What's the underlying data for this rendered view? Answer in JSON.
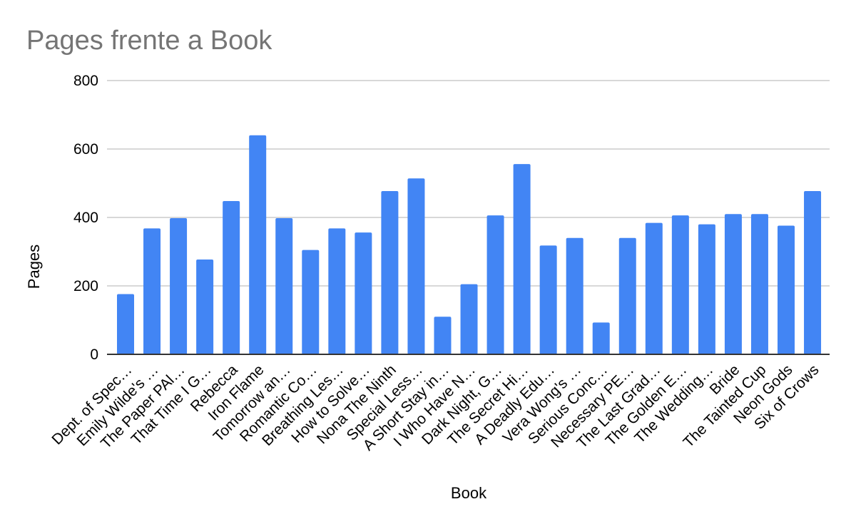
{
  "chart_data": {
    "type": "bar",
    "title": "Pages frente a Book",
    "xlabel": "Book",
    "ylabel": "Pages",
    "ylim": [
      0,
      800
    ],
    "yticks": [
      "0",
      "200",
      "400",
      "600",
      "800"
    ],
    "grid": true,
    "color": "#4285f4",
    "categories": [
      "Dept. of Spec…",
      "Emily Wilde's …",
      "The Paper PAl…",
      "That Time I G…",
      "Rebecca",
      "Iron Flame",
      "Tomorrow an…",
      "Romantic Co…",
      "Breathing Les…",
      "How to Solve…",
      "Nona The Ninth",
      "Special Less…",
      "A Short Stay in…",
      "I Who Have N…",
      "Dark Night, G…",
      "The Secret Hi…",
      "A Deadly Edu…",
      "Vera Wong's …",
      "Serious Conc…",
      "Necessary PE…",
      "The Last Grad…",
      "The Golden E…",
      "The Wedding…",
      "Bride",
      "The Tainted Cup",
      "Neon Gods",
      "Six of Crows"
    ],
    "values": [
      176,
      368,
      398,
      277,
      448,
      640,
      398,
      305,
      368,
      356,
      477,
      514,
      110,
      205,
      406,
      556,
      318,
      340,
      93,
      340,
      384,
      406,
      380,
      410,
      410,
      376,
      477
    ]
  }
}
